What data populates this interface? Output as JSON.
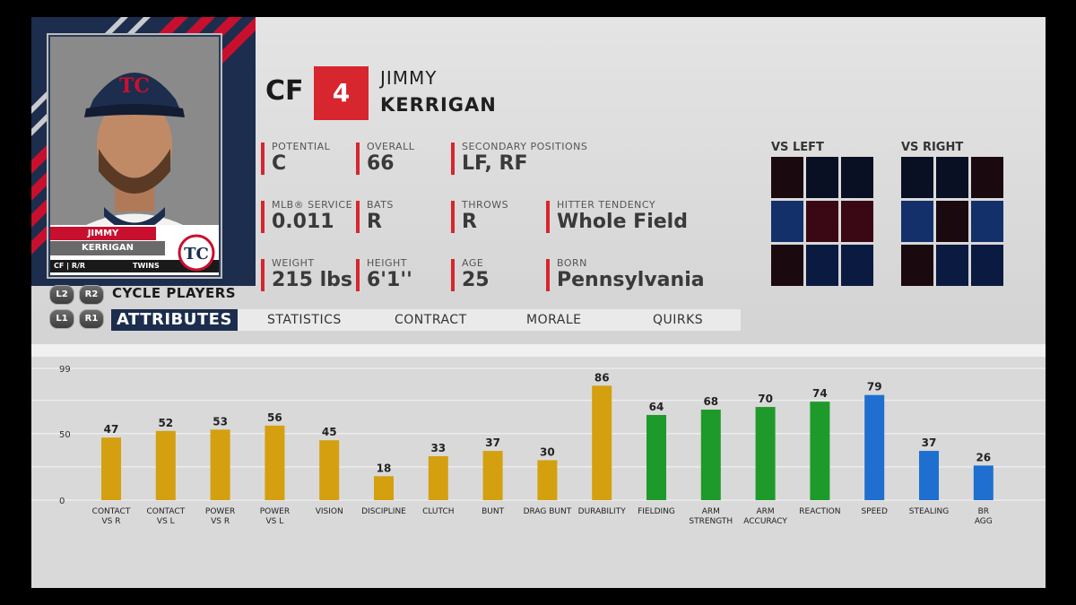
{
  "player": {
    "position": "CF",
    "number": "4",
    "first_name": "JIMMY",
    "last_name": "KERRIGAN"
  },
  "nameplate": {
    "first": "JIMMY",
    "last": "KERRIGAN",
    "pos_bats": "CF | R/R",
    "team": "TWINS"
  },
  "stats": [
    {
      "label": "POTENTIAL",
      "value": "C"
    },
    {
      "label": "OVERALL",
      "value": "66"
    },
    {
      "label": "SECONDARY POSITIONS",
      "value": "LF, RF"
    },
    {
      "label": "MLB® SERVICE",
      "value": "0.011"
    },
    {
      "label": "BATS",
      "value": "R"
    },
    {
      "label": "THROWS",
      "value": "R"
    },
    {
      "label": "HITTER TENDENCY",
      "value": "Whole Field"
    },
    {
      "label": "WEIGHT",
      "value": "215 lbs"
    },
    {
      "label": "HEIGHT",
      "value": "6'1''"
    },
    {
      "label": "AGE",
      "value": "25"
    },
    {
      "label": "BORN",
      "value": "Pennsylvania"
    }
  ],
  "hot_zones": {
    "vs_left_label": "VS LEFT",
    "vs_right_label": "VS RIGHT",
    "vs_left": [
      "#1a0a10",
      "#0a1024",
      "#0a1024",
      "#14306a",
      "#3a0814",
      "#3a0814",
      "#1a0a10",
      "#0a1a40",
      "#0a1a40"
    ],
    "vs_right": [
      "#0a1024",
      "#0a1024",
      "#1a0a10",
      "#14306a",
      "#1a0a10",
      "#14306a",
      "#1a0a10",
      "#0a1a40",
      "#0a1a40"
    ]
  },
  "controls": {
    "l2": "L2",
    "r2": "R2",
    "l1": "L1",
    "r1": "R1",
    "cycle_label": "CYCLE PLAYERS"
  },
  "tabs": [
    {
      "label": "ATTRIBUTES",
      "active": true
    },
    {
      "label": "STATISTICS",
      "active": false
    },
    {
      "label": "CONTRACT",
      "active": false
    },
    {
      "label": "MORALE",
      "active": false
    },
    {
      "label": "QUIRKS",
      "active": false
    }
  ],
  "chart_data": {
    "type": "bar",
    "ylim": [
      0,
      99
    ],
    "yticks": [
      "99",
      "50",
      "0"
    ],
    "categories": [
      [
        "CONTACT",
        "VS R"
      ],
      [
        "CONTACT",
        "VS L"
      ],
      [
        "POWER",
        "VS R"
      ],
      [
        "POWER",
        "VS L"
      ],
      [
        "VISION"
      ],
      [
        "DISCIPLINE"
      ],
      [
        "CLUTCH"
      ],
      [
        "BUNT"
      ],
      [
        "DRAG BUNT"
      ],
      [
        "DURABILITY"
      ],
      [
        "FIELDING"
      ],
      [
        "ARM",
        "STRENGTH"
      ],
      [
        "ARM",
        "ACCURACY"
      ],
      [
        "REACTION"
      ],
      [
        "SPEED"
      ],
      [
        "STEALING"
      ],
      [
        "BR",
        "AGG"
      ]
    ],
    "values": [
      47,
      52,
      53,
      56,
      45,
      18,
      33,
      37,
      30,
      86,
      64,
      68,
      70,
      74,
      79,
      37,
      26
    ],
    "group": [
      "hitting",
      "hitting",
      "hitting",
      "hitting",
      "hitting",
      "hitting",
      "hitting",
      "hitting",
      "hitting",
      "hitting",
      "fielding",
      "fielding",
      "fielding",
      "fielding",
      "running",
      "running",
      "running"
    ],
    "colors": {
      "hitting": "#d4a010",
      "fielding": "#1e9a2a",
      "running": "#1f6fd0"
    },
    "grid": true
  }
}
